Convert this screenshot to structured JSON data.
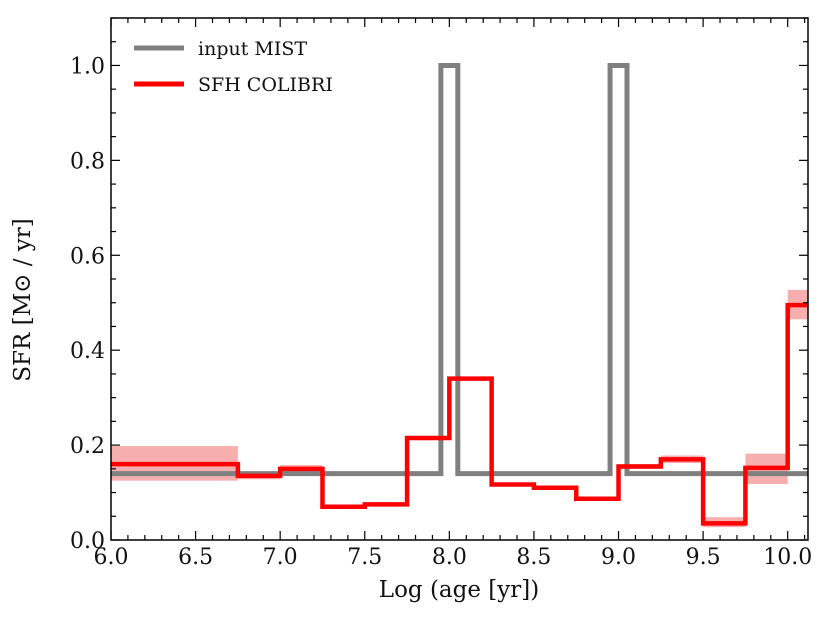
{
  "chart_data": {
    "type": "line",
    "title": "",
    "xlabel": "Log (age [yr])",
    "ylabel": "SFR [M⊙ / yr]",
    "xlim": [
      6.0,
      10.12
    ],
    "ylim": [
      0.0,
      1.1
    ],
    "xticks": [
      6.0,
      6.5,
      7.0,
      7.5,
      8.0,
      8.5,
      9.0,
      9.5,
      10.0
    ],
    "xtick_labels": [
      "6.0",
      "6.5",
      "7.0",
      "7.5",
      "8.0",
      "8.5",
      "9.0",
      "9.5",
      "10.0"
    ],
    "yticks": [
      0.0,
      0.2,
      0.4,
      0.6,
      0.8,
      1.0
    ],
    "ytick_labels": [
      "0.0",
      "0.2",
      "0.4",
      "0.6",
      "0.8",
      "1.0"
    ],
    "legend_position": "top-left",
    "series": [
      {
        "name": "input MIST",
        "color": "#808080",
        "style": "step",
        "points": [
          [
            6.0,
            0.14
          ],
          [
            7.95,
            0.14
          ],
          [
            7.95,
            1.0
          ],
          [
            8.05,
            1.0
          ],
          [
            8.05,
            0.14
          ],
          [
            8.95,
            0.14
          ],
          [
            8.95,
            1.0
          ],
          [
            9.05,
            1.0
          ],
          [
            9.05,
            0.14
          ],
          [
            10.12,
            0.14
          ]
        ]
      },
      {
        "name": "SFH COLIBRI",
        "color": "#ff0000",
        "band_color": "#f4a0a0",
        "style": "step",
        "bins": [
          {
            "x0": 6.0,
            "x1": 6.75,
            "value": 0.16,
            "low": 0.125,
            "high": 0.198
          },
          {
            "x0": 6.75,
            "x1": 7.0,
            "value": 0.135,
            "low": 0.128,
            "high": 0.142
          },
          {
            "x0": 7.0,
            "x1": 7.25,
            "value": 0.15,
            "low": 0.143,
            "high": 0.158
          },
          {
            "x0": 7.25,
            "x1": 7.5,
            "value": 0.07,
            "low": 0.066,
            "high": 0.074
          },
          {
            "x0": 7.5,
            "x1": 7.75,
            "value": 0.075,
            "low": 0.071,
            "high": 0.079
          },
          {
            "x0": 7.75,
            "x1": 8.0,
            "value": 0.215,
            "low": 0.211,
            "high": 0.219
          },
          {
            "x0": 8.0,
            "x1": 8.25,
            "value": 0.34,
            "low": 0.336,
            "high": 0.344
          },
          {
            "x0": 8.25,
            "x1": 8.5,
            "value": 0.117,
            "low": 0.113,
            "high": 0.121
          },
          {
            "x0": 8.5,
            "x1": 8.75,
            "value": 0.11,
            "low": 0.106,
            "high": 0.114
          },
          {
            "x0": 8.75,
            "x1": 9.0,
            "value": 0.087,
            "low": 0.083,
            "high": 0.091
          },
          {
            "x0": 9.0,
            "x1": 9.25,
            "value": 0.155,
            "low": 0.15,
            "high": 0.16
          },
          {
            "x0": 9.25,
            "x1": 9.5,
            "value": 0.17,
            "low": 0.162,
            "high": 0.178
          },
          {
            "x0": 9.5,
            "x1": 9.75,
            "value": 0.035,
            "low": 0.027,
            "high": 0.048
          },
          {
            "x0": 9.75,
            "x1": 10.0,
            "value": 0.152,
            "low": 0.118,
            "high": 0.182
          },
          {
            "x0": 10.0,
            "x1": 10.12,
            "value": 0.495,
            "low": 0.465,
            "high": 0.527
          }
        ]
      }
    ]
  }
}
